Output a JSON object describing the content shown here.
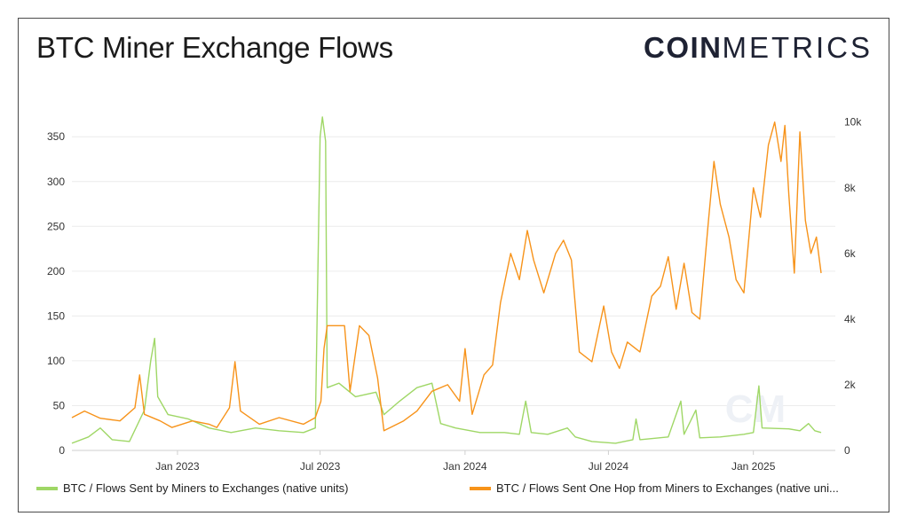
{
  "title": "BTC Miner Exchange Flows",
  "logo": {
    "bold": "COIN",
    "light": "METRICS"
  },
  "colors": {
    "green": "#9fd766",
    "orange": "#f7931a",
    "grid": "#ececec",
    "text": "#333333"
  },
  "legend": [
    {
      "label": "BTC / Flows Sent by Miners to Exchanges (native units)",
      "color": "#9fd766"
    },
    {
      "label": "BTC / Flows Sent One Hop from Miners to Exchanges (native uni...",
      "color": "#f7931a"
    }
  ],
  "chart_data": {
    "type": "line",
    "x_ticks": [
      "Jan 2023",
      "Jul 2023",
      "Jan 2024",
      "Jul 2024",
      "Jan 2025"
    ],
    "x_range": [
      "2022-08-20",
      "2025-04-15"
    ],
    "y_left": {
      "ticks": [
        "0",
        "50",
        "100",
        "150",
        "200",
        "250",
        "300",
        "350"
      ],
      "range": [
        0,
        370
      ]
    },
    "y_right": {
      "ticks": [
        "0",
        "2k",
        "4k",
        "6k",
        "8k",
        "10k"
      ],
      "range": [
        0,
        10100
      ]
    },
    "grid": true,
    "legend_position": "bottom",
    "series": [
      {
        "name": "BTC / Flows Sent by Miners to Exchanges (native units)",
        "axis": "left",
        "color": "#9fd766",
        "points": [
          [
            "2022-08-20",
            8
          ],
          [
            "2022-09-10",
            15
          ],
          [
            "2022-09-25",
            25
          ],
          [
            "2022-10-10",
            12
          ],
          [
            "2022-11-01",
            10
          ],
          [
            "2022-11-20",
            45
          ],
          [
            "2022-11-28",
            100
          ],
          [
            "2022-12-03",
            125
          ],
          [
            "2022-12-07",
            60
          ],
          [
            "2022-12-20",
            40
          ],
          [
            "2023-01-15",
            35
          ],
          [
            "2023-02-10",
            25
          ],
          [
            "2023-03-10",
            20
          ],
          [
            "2023-04-10",
            25
          ],
          [
            "2023-05-10",
            22
          ],
          [
            "2023-06-10",
            20
          ],
          [
            "2023-06-25",
            25
          ],
          [
            "2023-07-01",
            350
          ],
          [
            "2023-07-04",
            372
          ],
          [
            "2023-07-08",
            345
          ],
          [
            "2023-07-10",
            70
          ],
          [
            "2023-07-25",
            75
          ],
          [
            "2023-08-15",
            60
          ],
          [
            "2023-09-10",
            65
          ],
          [
            "2023-09-20",
            40
          ],
          [
            "2023-10-10",
            55
          ],
          [
            "2023-11-01",
            70
          ],
          [
            "2023-11-20",
            75
          ],
          [
            "2023-12-01",
            30
          ],
          [
            "2023-12-20",
            25
          ],
          [
            "2024-01-20",
            20
          ],
          [
            "2024-02-20",
            20
          ],
          [
            "2024-03-10",
            18
          ],
          [
            "2024-03-18",
            55
          ],
          [
            "2024-03-25",
            20
          ],
          [
            "2024-04-15",
            18
          ],
          [
            "2024-05-10",
            25
          ],
          [
            "2024-05-20",
            15
          ],
          [
            "2024-06-10",
            10
          ],
          [
            "2024-07-10",
            8
          ],
          [
            "2024-08-01",
            12
          ],
          [
            "2024-08-05",
            35
          ],
          [
            "2024-08-10",
            12
          ],
          [
            "2024-09-15",
            15
          ],
          [
            "2024-10-01",
            55
          ],
          [
            "2024-10-05",
            18
          ],
          [
            "2024-10-20",
            45
          ],
          [
            "2024-10-25",
            14
          ],
          [
            "2024-11-20",
            15
          ],
          [
            "2024-12-20",
            18
          ],
          [
            "2025-01-01",
            20
          ],
          [
            "2025-01-08",
            72
          ],
          [
            "2025-01-12",
            25
          ],
          [
            "2025-02-15",
            24
          ],
          [
            "2025-03-01",
            22
          ],
          [
            "2025-03-12",
            30
          ],
          [
            "2025-03-20",
            22
          ],
          [
            "2025-03-28",
            20
          ]
        ]
      },
      {
        "name": "BTC / Flows Sent One Hop from Miners to Exchanges (native units)",
        "axis": "right",
        "color": "#f7931a",
        "points": [
          [
            "2022-08-20",
            1000
          ],
          [
            "2022-09-05",
            1200
          ],
          [
            "2022-09-25",
            980
          ],
          [
            "2022-10-20",
            900
          ],
          [
            "2022-11-08",
            1300
          ],
          [
            "2022-11-14",
            2300
          ],
          [
            "2022-11-20",
            1100
          ],
          [
            "2022-12-10",
            900
          ],
          [
            "2022-12-25",
            700
          ],
          [
            "2023-01-20",
            900
          ],
          [
            "2023-02-10",
            800
          ],
          [
            "2023-02-20",
            700
          ],
          [
            "2023-03-08",
            1300
          ],
          [
            "2023-03-15",
            2700
          ],
          [
            "2023-03-22",
            1200
          ],
          [
            "2023-04-15",
            800
          ],
          [
            "2023-05-10",
            1000
          ],
          [
            "2023-06-10",
            800
          ],
          [
            "2023-06-25",
            1000
          ],
          [
            "2023-07-02",
            1500
          ],
          [
            "2023-07-06",
            3100
          ],
          [
            "2023-07-10",
            3800
          ],
          [
            "2023-08-01",
            3800
          ],
          [
            "2023-08-08",
            1800
          ],
          [
            "2023-08-20",
            3800
          ],
          [
            "2023-09-01",
            3500
          ],
          [
            "2023-09-12",
            2200
          ],
          [
            "2023-09-20",
            600
          ],
          [
            "2023-10-15",
            900
          ],
          [
            "2023-11-01",
            1200
          ],
          [
            "2023-11-20",
            1800
          ],
          [
            "2023-12-10",
            2000
          ],
          [
            "2023-12-25",
            1500
          ],
          [
            "2024-01-01",
            3100
          ],
          [
            "2024-01-10",
            1100
          ],
          [
            "2024-01-25",
            2300
          ],
          [
            "2024-02-05",
            2600
          ],
          [
            "2024-02-15",
            4500
          ],
          [
            "2024-02-28",
            6000
          ],
          [
            "2024-03-10",
            5200
          ],
          [
            "2024-03-20",
            6700
          ],
          [
            "2024-03-28",
            5800
          ],
          [
            "2024-04-10",
            4800
          ],
          [
            "2024-04-25",
            6000
          ],
          [
            "2024-05-05",
            6400
          ],
          [
            "2024-05-15",
            5800
          ],
          [
            "2024-05-25",
            3000
          ],
          [
            "2024-06-10",
            2700
          ],
          [
            "2024-06-25",
            4400
          ],
          [
            "2024-07-05",
            3000
          ],
          [
            "2024-07-15",
            2500
          ],
          [
            "2024-07-25",
            3300
          ],
          [
            "2024-08-10",
            3000
          ],
          [
            "2024-08-25",
            4700
          ],
          [
            "2024-09-05",
            5000
          ],
          [
            "2024-09-15",
            5900
          ],
          [
            "2024-09-25",
            4300
          ],
          [
            "2024-10-05",
            5700
          ],
          [
            "2024-10-15",
            4200
          ],
          [
            "2024-10-25",
            4000
          ],
          [
            "2024-11-05",
            7000
          ],
          [
            "2024-11-12",
            8800
          ],
          [
            "2024-11-20",
            7500
          ],
          [
            "2024-12-01",
            6500
          ],
          [
            "2024-12-10",
            5200
          ],
          [
            "2024-12-20",
            4800
          ],
          [
            "2025-01-01",
            8000
          ],
          [
            "2025-01-10",
            7100
          ],
          [
            "2025-01-20",
            9300
          ],
          [
            "2025-01-28",
            10000
          ],
          [
            "2025-02-05",
            8800
          ],
          [
            "2025-02-10",
            9900
          ],
          [
            "2025-02-15",
            7800
          ],
          [
            "2025-02-22",
            5400
          ],
          [
            "2025-03-01",
            9700
          ],
          [
            "2025-03-08",
            7000
          ],
          [
            "2025-03-15",
            6000
          ],
          [
            "2025-03-22",
            6500
          ],
          [
            "2025-03-28",
            5400
          ]
        ]
      }
    ]
  }
}
